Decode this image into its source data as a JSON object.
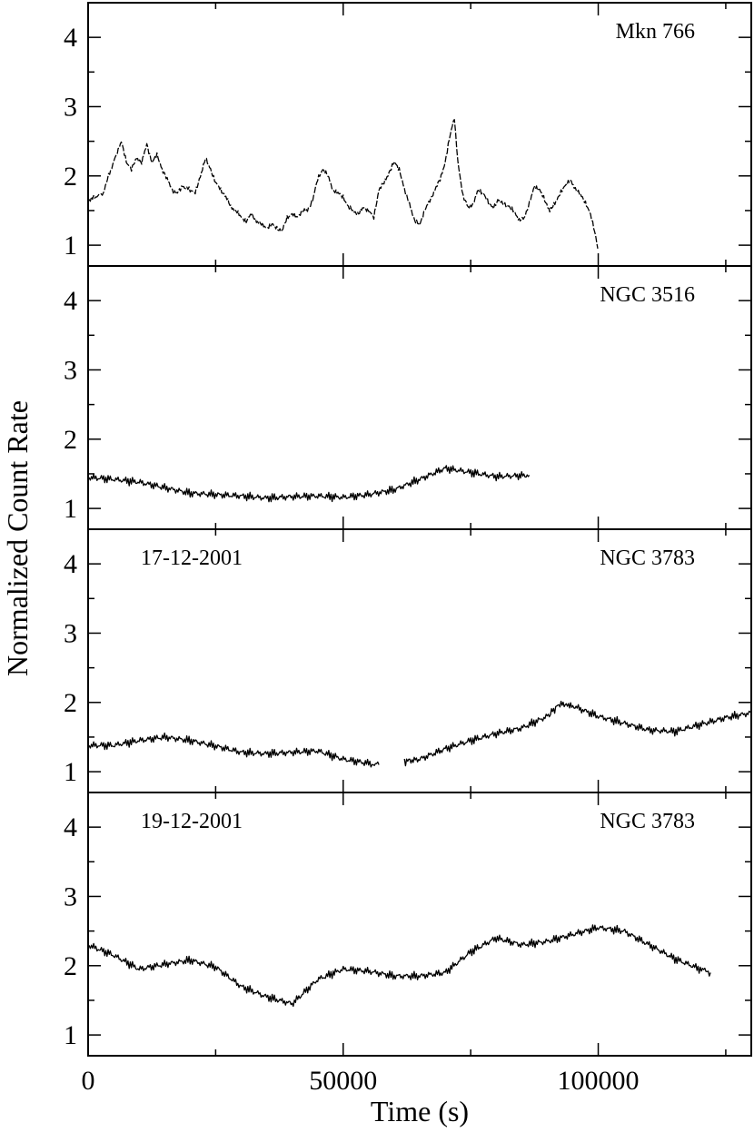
{
  "chart_data": {
    "type": "line",
    "xlabel": "Time (s)",
    "ylabel": "Normalized Count Rate",
    "xlim": [
      0,
      130000
    ],
    "x_major_ticks": [
      0,
      50000,
      100000
    ],
    "x_tick_labels": [
      "0",
      "50000",
      "100000"
    ],
    "x_minor_ticks": [
      25000,
      75000,
      125000
    ],
    "panels": [
      {
        "label_right": "Mkn 766",
        "label_left": "",
        "ylim": [
          0.7,
          4.5
        ],
        "y_ticks": [
          1,
          2,
          3,
          4
        ],
        "y_tick_labels": [
          "1",
          "2",
          "3",
          "4"
        ],
        "series": [
          {
            "style": "dashed",
            "segments": [
              [
                [
                  0,
                  1.65
                ],
                [
                  1500,
                  1.7
                ],
                [
                  3000,
                  1.75
                ],
                [
                  4000,
                  2.0
                ],
                [
                  5500,
                  2.3
                ],
                [
                  6500,
                  2.5
                ],
                [
                  7500,
                  2.2
                ],
                [
                  8500,
                  2.1
                ],
                [
                  9500,
                  2.25
                ],
                [
                  10500,
                  2.2
                ],
                [
                  11500,
                  2.45
                ],
                [
                  12500,
                  2.2
                ],
                [
                  13500,
                  2.3
                ],
                [
                  14500,
                  2.1
                ],
                [
                  15500,
                  1.95
                ],
                [
                  16500,
                  1.8
                ],
                [
                  17500,
                  1.75
                ],
                [
                  18500,
                  1.85
                ],
                [
                  20000,
                  1.8
                ],
                [
                  21000,
                  1.75
                ],
                [
                  22000,
                  2.0
                ],
                [
                  23000,
                  2.25
                ],
                [
                  24000,
                  2.1
                ],
                [
                  25000,
                  1.9
                ],
                [
                  26000,
                  1.8
                ],
                [
                  27000,
                  1.7
                ],
                [
                  28000,
                  1.55
                ],
                [
                  29000,
                  1.5
                ],
                [
                  30000,
                  1.4
                ],
                [
                  31000,
                  1.35
                ],
                [
                  32000,
                  1.45
                ],
                [
                  33000,
                  1.35
                ],
                [
                  34000,
                  1.3
                ],
                [
                  35000,
                  1.25
                ],
                [
                  36000,
                  1.3
                ],
                [
                  37000,
                  1.25
                ],
                [
                  38000,
                  1.2
                ],
                [
                  39000,
                  1.4
                ],
                [
                  40000,
                  1.45
                ],
                [
                  41000,
                  1.4
                ],
                [
                  42000,
                  1.5
                ],
                [
                  43000,
                  1.5
                ],
                [
                  44000,
                  1.65
                ],
                [
                  45000,
                  1.95
                ],
                [
                  46000,
                  2.1
                ],
                [
                  47000,
                  2.0
                ],
                [
                  48000,
                  1.8
                ],
                [
                  49000,
                  1.75
                ],
                [
                  50000,
                  1.7
                ],
                [
                  51000,
                  1.55
                ],
                [
                  52000,
                  1.5
                ],
                [
                  53000,
                  1.45
                ],
                [
                  54000,
                  1.55
                ],
                [
                  55000,
                  1.5
                ],
                [
                  56000,
                  1.4
                ],
                [
                  57000,
                  1.8
                ],
                [
                  58000,
                  1.9
                ],
                [
                  59000,
                  2.05
                ],
                [
                  60000,
                  2.2
                ],
                [
                  61000,
                  2.1
                ],
                [
                  62000,
                  1.8
                ],
                [
                  63000,
                  1.6
                ],
                [
                  64000,
                  1.35
                ],
                [
                  65000,
                  1.3
                ],
                [
                  66000,
                  1.5
                ],
                [
                  67000,
                  1.65
                ],
                [
                  68000,
                  1.8
                ],
                [
                  69000,
                  1.95
                ],
                [
                  70000,
                  2.2
                ],
                [
                  71000,
                  2.6
                ],
                [
                  71800,
                  2.85
                ],
                [
                  72500,
                  2.2
                ],
                [
                  73500,
                  1.7
                ],
                [
                  74500,
                  1.55
                ],
                [
                  75500,
                  1.6
                ],
                [
                  76500,
                  1.8
                ],
                [
                  77500,
                  1.75
                ],
                [
                  78500,
                  1.6
                ],
                [
                  79500,
                  1.55
                ],
                [
                  80500,
                  1.65
                ],
                [
                  81500,
                  1.6
                ],
                [
                  82500,
                  1.55
                ],
                [
                  83500,
                  1.5
                ],
                [
                  84500,
                  1.35
                ],
                [
                  85500,
                  1.4
                ],
                [
                  86500,
                  1.6
                ],
                [
                  87500,
                  1.85
                ],
                [
                  88500,
                  1.8
                ],
                [
                  89500,
                  1.65
                ],
                [
                  90500,
                  1.5
                ],
                [
                  91500,
                  1.6
                ],
                [
                  92500,
                  1.75
                ],
                [
                  93500,
                  1.85
                ],
                [
                  94500,
                  1.95
                ],
                [
                  95500,
                  1.8
                ],
                [
                  96500,
                  1.75
                ],
                [
                  97500,
                  1.6
                ],
                [
                  98500,
                  1.45
                ],
                [
                  99300,
                  1.2
                ],
                [
                  99900,
                  0.95
                ]
              ]
            ]
          }
        ]
      },
      {
        "label_right": "NGC 3516",
        "label_left": "",
        "ylim": [
          0.7,
          4.5
        ],
        "y_ticks": [
          1,
          2,
          3,
          4
        ],
        "y_tick_labels": [
          "1",
          "2",
          "3",
          "4"
        ],
        "series": [
          {
            "style": "solid",
            "segments": [
              [
                [
                  0,
                  1.45
                ],
                [
                  5000,
                  1.42
                ],
                [
                  10000,
                  1.38
                ],
                [
                  15000,
                  1.3
                ],
                [
                  20000,
                  1.22
                ],
                [
                  25000,
                  1.2
                ],
                [
                  30000,
                  1.18
                ],
                [
                  35000,
                  1.15
                ],
                [
                  40000,
                  1.17
                ],
                [
                  45000,
                  1.18
                ],
                [
                  50000,
                  1.16
                ],
                [
                  55000,
                  1.2
                ],
                [
                  60000,
                  1.27
                ],
                [
                  65000,
                  1.42
                ],
                [
                  70000,
                  1.58
                ],
                [
                  75000,
                  1.52
                ],
                [
                  80000,
                  1.46
                ],
                [
                  86500,
                  1.48
                ]
              ]
            ]
          }
        ]
      },
      {
        "label_right": "NGC 3783",
        "label_left": "17-12-2001",
        "ylim": [
          0.7,
          4.5
        ],
        "y_ticks": [
          1,
          2,
          3,
          4
        ],
        "y_tick_labels": [
          "1",
          "2",
          "3",
          "4"
        ],
        "series": [
          {
            "style": "solid",
            "segments": [
              [
                [
                  0,
                  1.38
                ],
                [
                  5000,
                  1.38
                ],
                [
                  10000,
                  1.45
                ],
                [
                  15000,
                  1.5
                ],
                [
                  20000,
                  1.45
                ],
                [
                  25000,
                  1.37
                ],
                [
                  30000,
                  1.28
                ],
                [
                  35000,
                  1.26
                ],
                [
                  40000,
                  1.28
                ],
                [
                  45000,
                  1.3
                ],
                [
                  50000,
                  1.18
                ],
                [
                  55000,
                  1.12
                ],
                [
                  57000,
                  1.1
                ]
              ],
              [
                [
                  62000,
                  1.15
                ],
                [
                  65000,
                  1.18
                ],
                [
                  70000,
                  1.33
                ],
                [
                  75000,
                  1.45
                ],
                [
                  80000,
                  1.55
                ],
                [
                  85000,
                  1.63
                ],
                [
                  90000,
                  1.8
                ],
                [
                  92500,
                  1.98
                ],
                [
                  95000,
                  1.95
                ],
                [
                  100000,
                  1.8
                ],
                [
                  105000,
                  1.7
                ],
                [
                  110000,
                  1.6
                ],
                [
                  115000,
                  1.58
                ],
                [
                  120000,
                  1.68
                ],
                [
                  125000,
                  1.78
                ],
                [
                  130000,
                  1.85
                ]
              ]
            ]
          }
        ]
      },
      {
        "label_right": "NGC 3783",
        "label_left": "19-12-2001",
        "ylim": [
          0.7,
          4.5
        ],
        "y_ticks": [
          1,
          2,
          3,
          4
        ],
        "y_tick_labels": [
          "1",
          "2",
          "3",
          "4"
        ],
        "series": [
          {
            "style": "solid",
            "segments": [
              [
                [
                  0,
                  2.3
                ],
                [
                  5000,
                  2.15
                ],
                [
                  10000,
                  1.95
                ],
                [
                  15000,
                  2.02
                ],
                [
                  20000,
                  2.08
                ],
                [
                  25000,
                  1.98
                ],
                [
                  30000,
                  1.7
                ],
                [
                  35000,
                  1.55
                ],
                [
                  40000,
                  1.45
                ],
                [
                  45000,
                  1.8
                ],
                [
                  50000,
                  1.95
                ],
                [
                  55000,
                  1.92
                ],
                [
                  60000,
                  1.85
                ],
                [
                  65000,
                  1.85
                ],
                [
                  70000,
                  1.9
                ],
                [
                  75000,
                  2.2
                ],
                [
                  80000,
                  2.4
                ],
                [
                  85000,
                  2.3
                ],
                [
                  90000,
                  2.35
                ],
                [
                  95000,
                  2.45
                ],
                [
                  100000,
                  2.55
                ],
                [
                  105000,
                  2.5
                ],
                [
                  110000,
                  2.3
                ],
                [
                  115000,
                  2.1
                ],
                [
                  120000,
                  1.95
                ],
                [
                  122000,
                  1.9
                ]
              ]
            ]
          }
        ]
      }
    ]
  }
}
